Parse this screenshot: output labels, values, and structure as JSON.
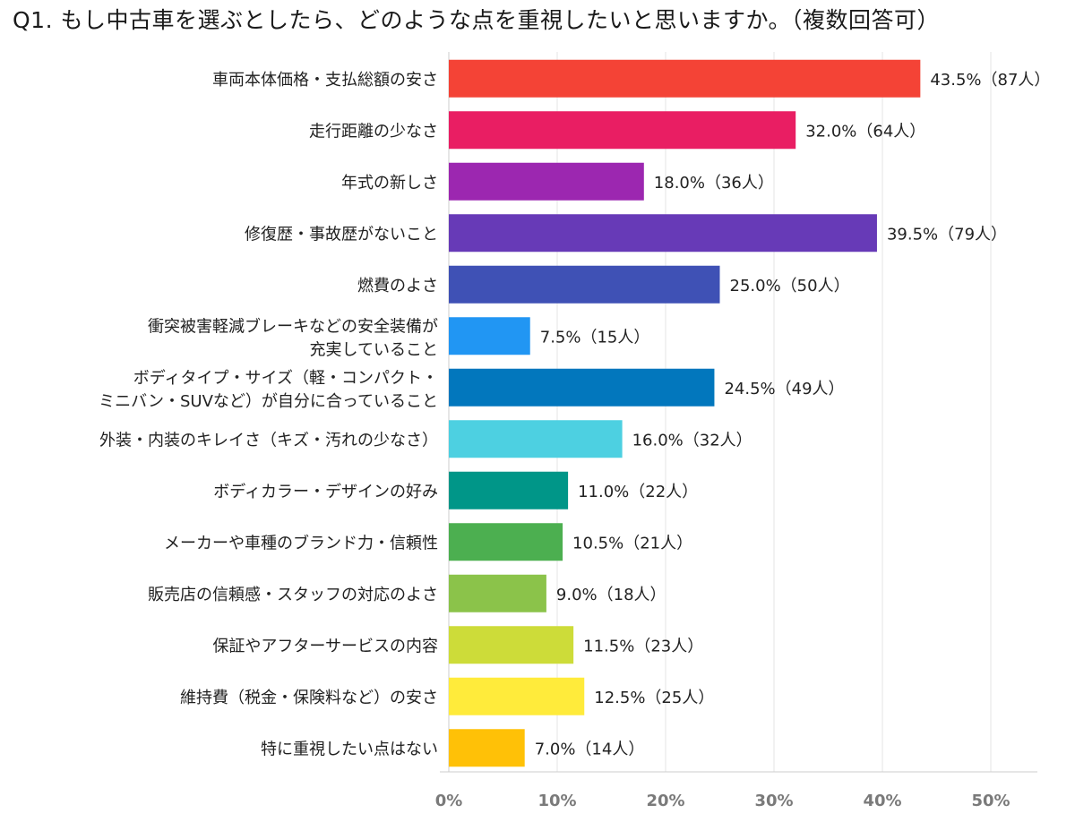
{
  "title": "Q1. もし中古車を選ぶとしたら、どのような点を重視したいと思いますか。（複数回答可）",
  "chart_data": {
    "type": "bar",
    "orientation": "horizontal",
    "title": "Q1. もし中古車を選ぶとしたら、どのような点を重視したいと思いますか。（複数回答可）",
    "xlabel": "",
    "ylabel": "",
    "xlim": [
      0,
      50
    ],
    "x_ticks": [
      "0%",
      "10%",
      "20%",
      "30%",
      "40%",
      "50%"
    ],
    "grid": true,
    "legend": "none",
    "categories": [
      [
        "車両本体価格・支払総額の安さ"
      ],
      [
        "走行距離の少なさ"
      ],
      [
        "年式の新しさ"
      ],
      [
        "修復歴・事故歴がないこと"
      ],
      [
        "燃費のよさ"
      ],
      [
        "衝突被害軽減ブレーキなどの安全装備が",
        "充実していること"
      ],
      [
        "ボディタイプ・サイズ（軽・コンパクト・",
        "ミニバン・SUVなど）が自分に合っていること"
      ],
      [
        "外装・内装のキレイさ（キズ・汚れの少なさ）"
      ],
      [
        "ボディカラー・デザインの好み"
      ],
      [
        "メーカーや車種のブランド力・信頼性"
      ],
      [
        "販売店の信頼感・スタッフの対応のよさ"
      ],
      [
        "保証やアフターサービスの内容"
      ],
      [
        "維持費（税金・保険料など）の安さ"
      ],
      [
        "特に重視したい点はない"
      ]
    ],
    "values": [
      43.5,
      32.0,
      18.0,
      39.5,
      25.0,
      7.5,
      24.5,
      16.0,
      11.0,
      10.5,
      9.0,
      11.5,
      12.5,
      7.0
    ],
    "data_labels": [
      "43.5%（87人）",
      "32.0%（64人）",
      "18.0%（36人）",
      "39.5%（79人）",
      "25.0%（50人）",
      "7.5%（15人）",
      "24.5%（49人）",
      "16.0%（32人）",
      "11.0%（22人）",
      "10.5%（21人）",
      "9.0%（18人）",
      "11.5%（23人）",
      "12.5%（25人）",
      "7.0%（14人）"
    ],
    "colors": [
      "#f44336",
      "#e91e63",
      "#9c27b0",
      "#673ab7",
      "#3f51b5",
      "#2196f3",
      "#0277bd",
      "#4dd0e1",
      "#009688",
      "#4caf50",
      "#8bc34a",
      "#cddc39",
      "#ffeb3b",
      "#ffc107"
    ],
    "grid_color": "#e6e6e6",
    "axis_color": "#cccccc"
  }
}
